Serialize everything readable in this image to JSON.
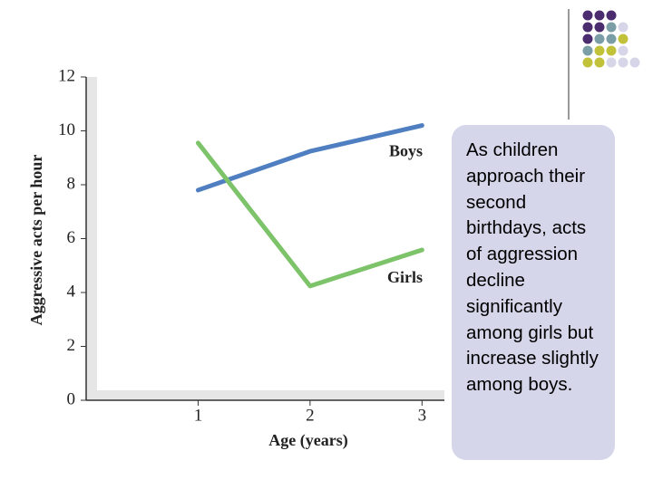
{
  "chart_data": {
    "type": "line",
    "x_label": "Age (years)",
    "y_label": "Aggressive acts per hour",
    "x": [
      1,
      2,
      3
    ],
    "series": [
      {
        "name": "Boys",
        "color": "#4f7fc0",
        "values": [
          7.8,
          9.24,
          10.2
        ]
      },
      {
        "name": "Girls",
        "color": "#7dc36a",
        "values": [
          9.55,
          4.24,
          5.58
        ]
      }
    ],
    "xlim": [
      0,
      3.2
    ],
    "xticks": [
      1,
      2,
      3
    ],
    "ylim": [
      0,
      12
    ],
    "yticks": [
      0,
      2,
      4,
      6,
      8,
      10,
      12
    ]
  },
  "note": "As children approach their second birthdays, acts of aggression decline significantly among girls but increase slightly among boys."
}
